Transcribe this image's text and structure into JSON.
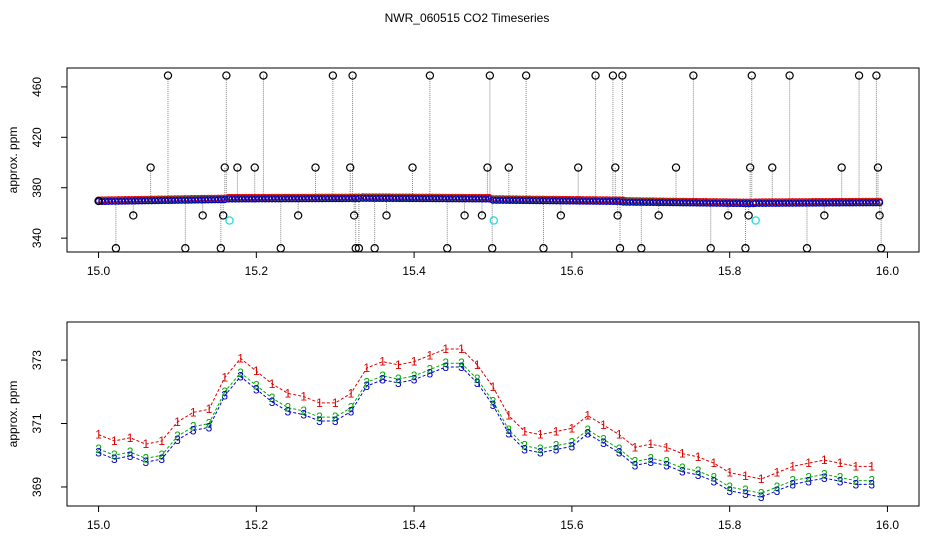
{
  "title": "NWR_060515  CO2 Timeseries",
  "chart_data": [
    {
      "type": "scatter",
      "ylabel": "approx. ppm",
      "xlim": [
        14.96,
        16.04
      ],
      "ylim": [
        329,
        475
      ],
      "x_ticks": [
        "15.0",
        "15.2",
        "15.4",
        "15.6",
        "15.8",
        "16.0"
      ],
      "y_ticks": [
        "340",
        "380",
        "420",
        "460"
      ],
      "colors": {
        "blue": "#0000cc",
        "red": "#dd0000",
        "green": "#00aa00",
        "cyan": "#22dddd",
        "black": "#000000",
        "spike": "#888888"
      },
      "baseline_segments": [
        {
          "x0": 15.0,
          "x1": 15.16,
          "y0": 369.5,
          "y1": 371.0
        },
        {
          "x0": 15.165,
          "x1": 15.33,
          "y0": 371.5,
          "y1": 371.8
        },
        {
          "x0": 15.335,
          "x1": 15.495,
          "y0": 372.0,
          "y1": 371.5
        },
        {
          "x0": 15.5,
          "x1": 15.665,
          "y0": 370.5,
          "y1": 369.5
        },
        {
          "x0": 15.665,
          "x1": 15.83,
          "y0": 369.0,
          "y1": 367.8
        },
        {
          "x0": 15.833,
          "x1": 15.99,
          "y0": 368.0,
          "y1": 368.5
        }
      ],
      "black_points": [
        {
          "x": 15.0,
          "y": 369.5
        },
        {
          "x": 15.022,
          "y": 332
        },
        {
          "x": 15.044,
          "y": 358
        },
        {
          "x": 15.066,
          "y": 396
        },
        {
          "x": 15.088,
          "y": 469
        },
        {
          "x": 15.11,
          "y": 332
        },
        {
          "x": 15.132,
          "y": 358
        },
        {
          "x": 15.155,
          "y": 332
        },
        {
          "x": 15.158,
          "y": 358
        },
        {
          "x": 15.16,
          "y": 396
        },
        {
          "x": 15.162,
          "y": 469
        },
        {
          "x": 15.176,
          "y": 396
        },
        {
          "x": 15.198,
          "y": 396
        },
        {
          "x": 15.209,
          "y": 469
        },
        {
          "x": 15.231,
          "y": 332
        },
        {
          "x": 15.253,
          "y": 358
        },
        {
          "x": 15.275,
          "y": 396
        },
        {
          "x": 15.297,
          "y": 469
        },
        {
          "x": 15.319,
          "y": 396
        },
        {
          "x": 15.322,
          "y": 469
        },
        {
          "x": 15.324,
          "y": 358
        },
        {
          "x": 15.326,
          "y": 332
        },
        {
          "x": 15.33,
          "y": 332
        },
        {
          "x": 15.35,
          "y": 332
        },
        {
          "x": 15.365,
          "y": 358
        },
        {
          "x": 15.398,
          "y": 396
        },
        {
          "x": 15.42,
          "y": 469
        },
        {
          "x": 15.442,
          "y": 332
        },
        {
          "x": 15.464,
          "y": 358
        },
        {
          "x": 15.486,
          "y": 358
        },
        {
          "x": 15.493,
          "y": 396
        },
        {
          "x": 15.496,
          "y": 469
        },
        {
          "x": 15.499,
          "y": 332
        },
        {
          "x": 15.52,
          "y": 396
        },
        {
          "x": 15.542,
          "y": 469
        },
        {
          "x": 15.564,
          "y": 332
        },
        {
          "x": 15.586,
          "y": 358
        },
        {
          "x": 15.608,
          "y": 396
        },
        {
          "x": 15.63,
          "y": 469
        },
        {
          "x": 15.652,
          "y": 469
        },
        {
          "x": 15.655,
          "y": 396
        },
        {
          "x": 15.658,
          "y": 358
        },
        {
          "x": 15.661,
          "y": 332
        },
        {
          "x": 15.664,
          "y": 469
        },
        {
          "x": 15.688,
          "y": 332
        },
        {
          "x": 15.71,
          "y": 358
        },
        {
          "x": 15.732,
          "y": 396
        },
        {
          "x": 15.754,
          "y": 469
        },
        {
          "x": 15.776,
          "y": 332
        },
        {
          "x": 15.798,
          "y": 358
        },
        {
          "x": 15.82,
          "y": 332
        },
        {
          "x": 15.824,
          "y": 358
        },
        {
          "x": 15.826,
          "y": 396
        },
        {
          "x": 15.828,
          "y": 469
        },
        {
          "x": 15.854,
          "y": 396
        },
        {
          "x": 15.876,
          "y": 469
        },
        {
          "x": 15.898,
          "y": 332
        },
        {
          "x": 15.92,
          "y": 358
        },
        {
          "x": 15.942,
          "y": 396
        },
        {
          "x": 15.964,
          "y": 469
        },
        {
          "x": 15.986,
          "y": 469
        },
        {
          "x": 15.988,
          "y": 396
        },
        {
          "x": 15.99,
          "y": 358
        },
        {
          "x": 15.992,
          "y": 332
        }
      ],
      "cyan_points": [
        {
          "x": 15.166,
          "y": 354
        },
        {
          "x": 15.501,
          "y": 354
        },
        {
          "x": 15.833,
          "y": 354
        }
      ]
    },
    {
      "type": "line",
      "ylabel": "approx. ppm",
      "xlim": [
        14.96,
        16.04
      ],
      "ylim": [
        368.4,
        374.2
      ],
      "x_ticks": [
        "15.0",
        "15.2",
        "15.4",
        "15.6",
        "15.8",
        "16.0"
      ],
      "y_ticks": [
        "369",
        "371",
        "373"
      ],
      "series": [
        {
          "marker": "1",
          "color": "#dd0000",
          "offset": 0.45
        },
        {
          "marker": "2",
          "color": "#00aa00",
          "offset": 0.0
        },
        {
          "marker": "3",
          "color": "#0000cc",
          "offset": -0.12
        }
      ],
      "x": [
        15.0,
        15.02,
        15.04,
        15.06,
        15.08,
        15.1,
        15.12,
        15.14,
        15.16,
        15.18,
        15.2,
        15.22,
        15.24,
        15.26,
        15.28,
        15.3,
        15.32,
        15.34,
        15.36,
        15.38,
        15.4,
        15.42,
        15.44,
        15.46,
        15.48,
        15.5,
        15.52,
        15.54,
        15.56,
        15.58,
        15.6,
        15.62,
        15.64,
        15.66,
        15.68,
        15.7,
        15.72,
        15.74,
        15.76,
        15.78,
        15.8,
        15.82,
        15.84,
        15.86,
        15.88,
        15.9,
        15.92,
        15.94,
        15.96,
        15.98
      ],
      "y": [
        370.2,
        370.0,
        370.1,
        369.9,
        370.0,
        370.6,
        370.9,
        371.0,
        372.0,
        372.6,
        372.2,
        371.8,
        371.5,
        371.4,
        371.2,
        371.2,
        371.5,
        372.3,
        372.5,
        372.4,
        372.5,
        372.7,
        372.9,
        372.9,
        372.4,
        371.7,
        370.8,
        370.3,
        370.2,
        370.3,
        370.4,
        370.8,
        370.5,
        370.2,
        369.8,
        369.9,
        369.8,
        369.6,
        369.5,
        369.3,
        369.0,
        368.9,
        368.8,
        369.0,
        369.2,
        369.3,
        369.4,
        369.3,
        369.2,
        369.2
      ]
    }
  ]
}
